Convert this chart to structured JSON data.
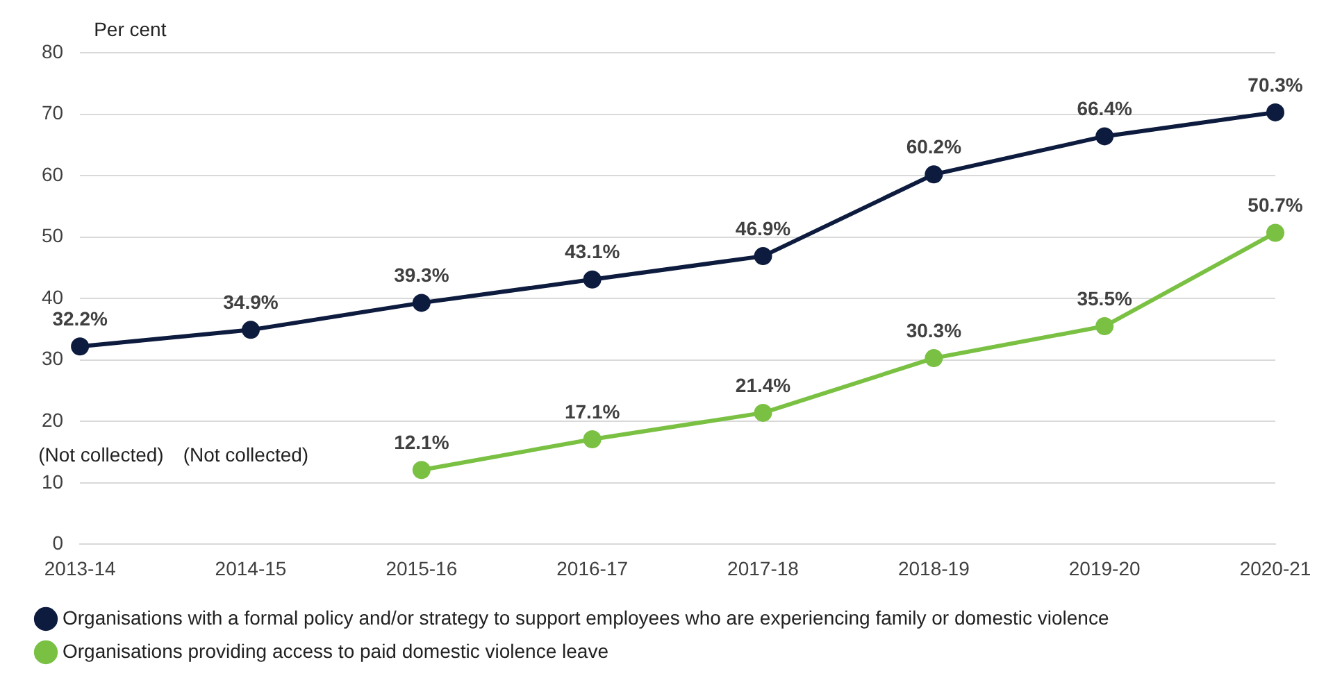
{
  "chart_data": {
    "type": "line",
    "ylabel": "Per cent",
    "categories": [
      "2013-14",
      "2014-15",
      "2015-16",
      "2016-17",
      "2017-18",
      "2018-19",
      "2019-20",
      "2020-21"
    ],
    "series": [
      {
        "name": "Organisations with a formal policy and/or strategy to support employees who are experiencing family or domestic violence",
        "color": "#0d1b3e",
        "values": [
          32.2,
          34.9,
          39.3,
          43.1,
          46.9,
          60.2,
          66.4,
          70.3
        ],
        "value_labels": [
          "32.2%",
          "34.9%",
          "39.3%",
          "43.1%",
          "46.9%",
          "60.2%",
          "66.4%",
          "70.3%"
        ]
      },
      {
        "name": "Organisations providing access to paid domestic violence leave",
        "color": "#7ac143",
        "values": [
          null,
          null,
          12.1,
          17.1,
          21.4,
          30.3,
          35.5,
          50.7
        ],
        "value_labels": [
          null,
          null,
          "12.1%",
          "17.1%",
          "21.4%",
          "30.3%",
          "35.5%",
          "50.7%"
        ]
      }
    ],
    "ylim": [
      0,
      80
    ],
    "yticks": [
      0,
      10,
      20,
      30,
      40,
      50,
      60,
      70,
      80
    ],
    "grid": "y",
    "legend": "bottom",
    "marker": "circle",
    "line_style": "solid",
    "annotations": [
      "(Not collected)",
      "(Not collected)"
    ]
  }
}
